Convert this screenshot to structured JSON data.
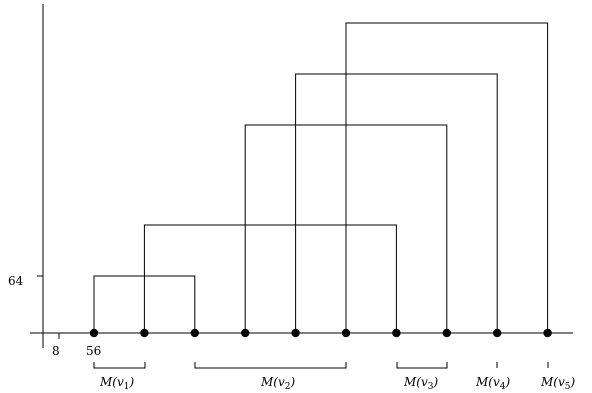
{
  "axis": {
    "y_tick_label": "64",
    "x_tick_labels": [
      "8",
      "56"
    ]
  },
  "points": [
    "p1",
    "p2",
    "p3",
    "p4",
    "p5",
    "p6",
    "p7",
    "p8",
    "p9",
    "p10"
  ],
  "groups": [
    {
      "label": "M(v1)",
      "base": "M(v",
      "sub": "1",
      "close": ")"
    },
    {
      "label": "M(v2)",
      "base": "M(v",
      "sub": "2",
      "close": ")"
    },
    {
      "label": "M(v3)",
      "base": "M(v",
      "sub": "3",
      "close": ")"
    },
    {
      "label": "M(v4)",
      "base": "M(v",
      "sub": "4",
      "close": ")"
    },
    {
      "label": "M(v5)",
      "base": "M(v",
      "sub": "5",
      "close": ")"
    }
  ],
  "connectors": [
    {
      "from": 1,
      "to": 3,
      "level": 1
    },
    {
      "from": 2,
      "to": 7,
      "level": 2
    },
    {
      "from": 4,
      "to": 8,
      "level": 3
    },
    {
      "from": 5,
      "to": 9,
      "level": 4
    },
    {
      "from": 6,
      "to": 10,
      "level": 5
    }
  ]
}
